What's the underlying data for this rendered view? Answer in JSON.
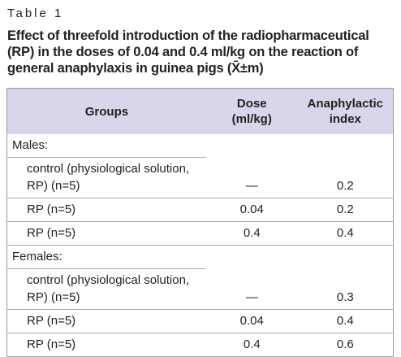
{
  "label": "Table 1",
  "title": "Effect of threefold introduction of the radiopharmaceutical (RP) in the doses of 0.04 and 0.4 ml/kg on the reaction of general anaphylaxis in guinea pigs (X̄±m)",
  "table": {
    "header": [
      "Groups",
      "Dose\n(ml/kg)",
      "Anaphylactic\nindex"
    ],
    "sections": [
      {
        "label": "Males:",
        "rows": [
          [
            "control (physiological solution, RP) (n=5)",
            "—",
            "0.2"
          ],
          [
            "RP (n=5)",
            "0.04",
            "0.2"
          ],
          [
            "RP (n=5)",
            "0.4",
            "0.4"
          ]
        ]
      },
      {
        "label": "Females:",
        "rows": [
          [
            "control (physiological solution, RP) (n=5)",
            "—",
            "0.3"
          ],
          [
            "RP (n=5)",
            "0.04",
            "0.4"
          ],
          [
            "RP (n=5)",
            "0.4",
            "0.6"
          ]
        ]
      }
    ]
  }
}
